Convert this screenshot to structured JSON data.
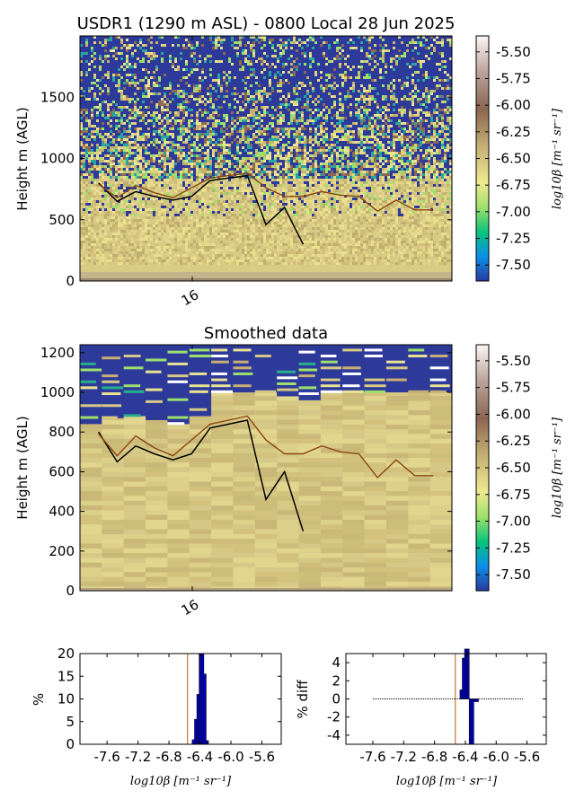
{
  "chart_data": [
    {
      "type": "heatmap",
      "title": "USDR1 (1290 m ASL) - 0800 Local 28 Jun 2025",
      "ylabel": "Height m (AGL)",
      "xlabel": "",
      "ylim": [
        0,
        2000
      ],
      "yticks": [
        "0",
        "500",
        "1000",
        "1500"
      ],
      "xtick_labels": [
        "16"
      ],
      "colorbar": {
        "label": "log10β [m⁻¹ sr⁻¹]",
        "range": [
          -7.65,
          -5.35
        ],
        "ticks": [
          "-5.50",
          "-5.75",
          "-6.00",
          "-6.25",
          "-6.50",
          "-6.75",
          "-7.00",
          "-7.25",
          "-7.50"
        ]
      },
      "series": [
        {
          "color": "#000000",
          "x": [
            0.5,
            1,
            1.5,
            2,
            2.5,
            3,
            3.5,
            4,
            4.5,
            5,
            5.5,
            6
          ],
          "values": [
            800,
            650,
            730,
            690,
            660,
            690,
            820,
            840,
            860,
            460,
            600,
            300
          ]
        },
        {
          "color": "#8b4513",
          "x": [
            0.5,
            1,
            1.5,
            2,
            2.5,
            3,
            3.5,
            4,
            4.5,
            5,
            5.5,
            6,
            6.5,
            7,
            7.5,
            8,
            8.5,
            9,
            9.5
          ],
          "values": [
            790,
            680,
            780,
            720,
            680,
            760,
            840,
            860,
            880,
            760,
            690,
            690,
            730,
            700,
            690,
            570,
            660,
            580,
            580
          ]
        }
      ]
    },
    {
      "type": "heatmap",
      "title": "Smoothed data",
      "ylabel": "Height m (AGL)",
      "ylim": [
        0,
        1240
      ],
      "yticks": [
        "0",
        "200",
        "400",
        "600",
        "800",
        "1000",
        "1200"
      ],
      "xtick_labels": [
        "16"
      ],
      "colorbar": {
        "label": "log10β [m⁻¹ sr⁻¹]",
        "range": [
          -7.65,
          -5.35
        ],
        "ticks": [
          "-5.50",
          "-5.75",
          "-6.00",
          "-6.25",
          "-6.50",
          "-6.75",
          "-7.00",
          "-7.25",
          "-7.50"
        ]
      },
      "series": [
        {
          "color": "#000000",
          "x": [
            0.5,
            1,
            1.5,
            2,
            2.5,
            3,
            3.5,
            4,
            4.5,
            5,
            5.5,
            6
          ],
          "values": [
            800,
            650,
            730,
            690,
            660,
            690,
            820,
            840,
            860,
            460,
            600,
            300
          ]
        },
        {
          "color": "#8b4513",
          "x": [
            0.5,
            1,
            1.5,
            2,
            2.5,
            3,
            3.5,
            4,
            4.5,
            5,
            5.5,
            6,
            6.5,
            7,
            7.5,
            8,
            8.5,
            9,
            9.5
          ],
          "values": [
            790,
            680,
            780,
            720,
            680,
            760,
            840,
            860,
            880,
            760,
            690,
            690,
            730,
            700,
            690,
            570,
            660,
            580,
            580
          ]
        }
      ]
    },
    {
      "type": "bar",
      "ylabel": "%",
      "xlabel": "log10β [m⁻¹ sr⁻¹]",
      "xlim": [
        -7.95,
        -5.35
      ],
      "ylim": [
        0,
        20
      ],
      "xtick_labels": [
        "-7.6",
        "-7.2",
        "-6.8",
        "-6.4",
        "-6.0",
        "-5.6"
      ],
      "yticks": [
        "0",
        "5",
        "10",
        "15",
        "20"
      ],
      "x": [
        -6.5,
        -6.47,
        -6.44,
        -6.41,
        -6.38,
        -6.35,
        -6.32
      ],
      "values": [
        1,
        5.5,
        11,
        20,
        20,
        15.5,
        0.8
      ],
      "vline": -6.56
    },
    {
      "type": "bar",
      "ylabel": "% diff",
      "xlabel": "log10β [m⁻¹ sr⁻¹]",
      "xlim": [
        -7.95,
        -5.35
      ],
      "ylim": [
        -5,
        5
      ],
      "xtick_labels": [
        "-7.6",
        "-7.2",
        "-6.8",
        "-6.4",
        "-6.0",
        "-5.6"
      ],
      "yticks": [
        "4",
        "2",
        "0",
        "-2",
        "-4"
      ],
      "x": [
        -6.47,
        -6.44,
        -6.41,
        -6.38,
        -6.35,
        -6.32,
        -6.29,
        -6.26
      ],
      "values": [
        1,
        4.5,
        5.5,
        5.5,
        -5,
        -5,
        -0.3,
        -0.3
      ],
      "vline": -6.53,
      "zero_line": [
        -7.6,
        -5.65
      ]
    }
  ]
}
